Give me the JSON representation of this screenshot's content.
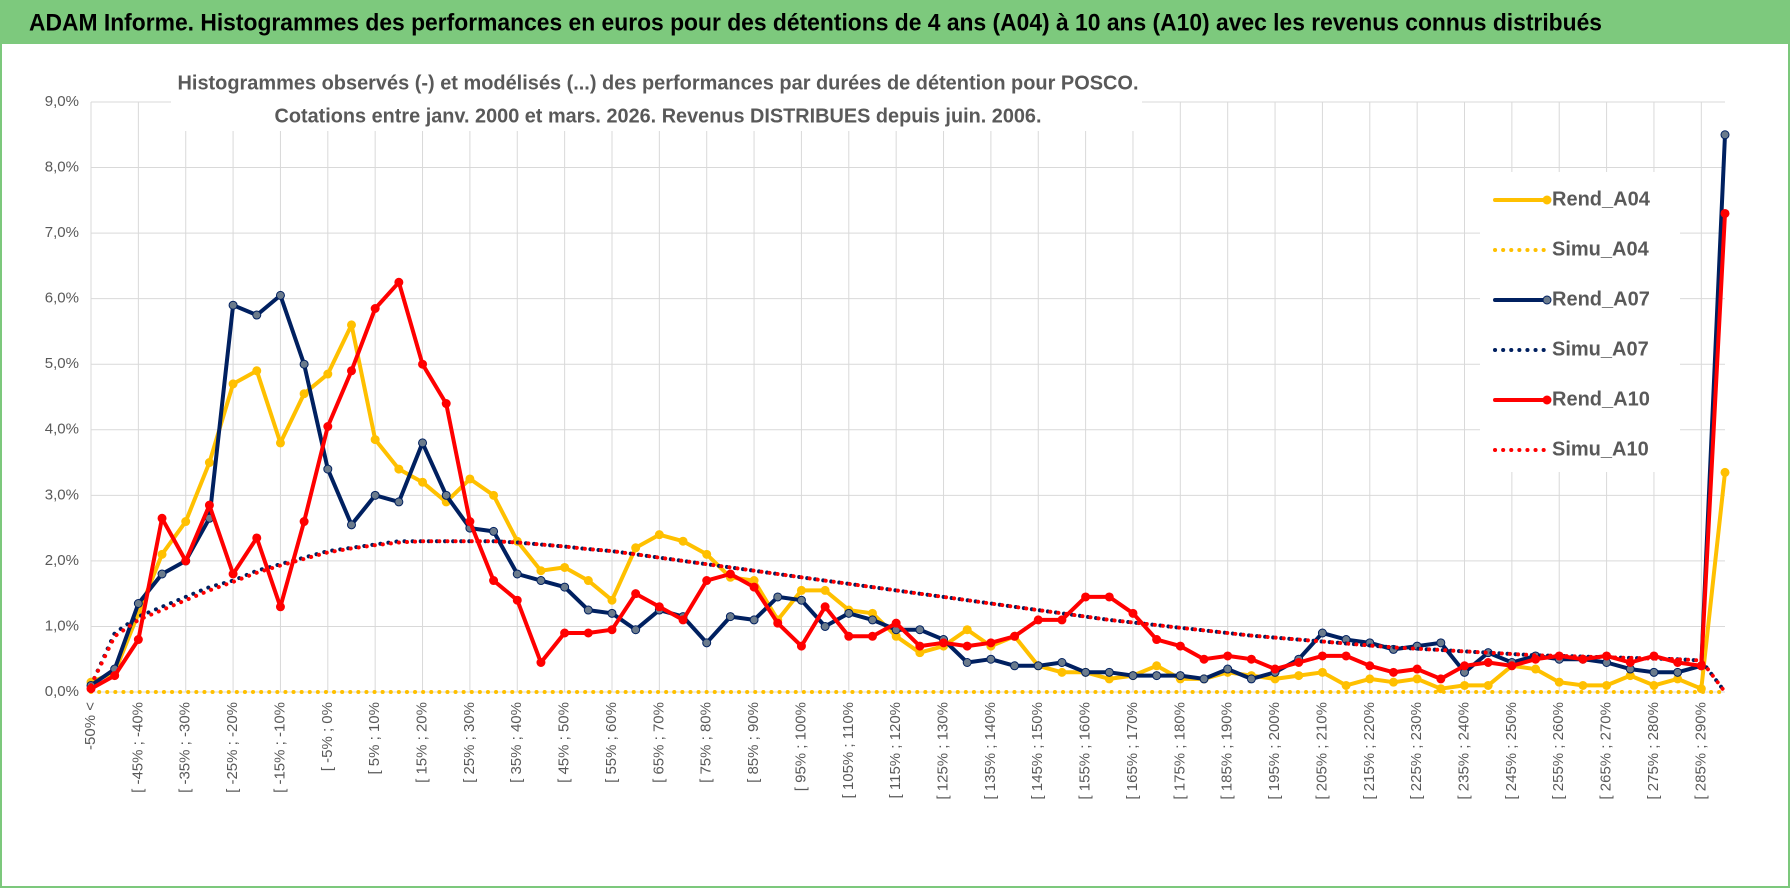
{
  "header": {
    "title": "ADAM Informe. Histogrammes des performances en euros pour des détentions de 4 ans (A04) à 10 ans (A10) avec les revenus connus distribués"
  },
  "chart_data": {
    "type": "line",
    "title": "Histogrammes observés (-) et modélisés (...) des performances par durées de détention pour POSCO.",
    "subtitle": "Cotations entre janv. 2000 et mars. 2026.  Revenus DISTRIBUES depuis juin. 2006.",
    "categories": [
      "-50% <",
      null,
      "[ -45% ; -40%",
      null,
      "[ -35% ; -30%",
      null,
      "[ -25% ; -20%",
      null,
      "[ -15% ; -10%",
      null,
      "[ -5% ; 0%",
      null,
      "[ 5% ; 10%",
      null,
      "[ 15% ; 20%",
      null,
      "[ 25% ; 30%",
      null,
      "[ 35% ; 40%",
      null,
      "[ 45% ; 50%",
      null,
      "[ 55% ; 60%",
      null,
      "[ 65% ; 70%",
      null,
      "[ 75% ; 80%",
      null,
      "[ 85% ; 90%",
      null,
      "[ 95% ; 100%",
      null,
      "[ 105% ; 110%",
      null,
      "[ 115% ; 120%",
      null,
      "[ 125% ; 130%",
      null,
      "[ 135% ; 140%",
      null,
      "[ 145% ; 150%",
      null,
      "[ 155% ; 160%",
      null,
      "[ 165% ; 170%",
      null,
      "[ 175% ; 180%",
      null,
      "[ 185% ; 190%",
      null,
      "[ 195% ; 200%",
      null,
      "[ 205% ; 210%",
      null,
      "[ 215% ; 220%",
      null,
      "[ 225% ; 230%",
      null,
      "[ 235% ; 240%",
      null,
      "[ 245% ; 250%",
      null,
      "[ 255% ; 260%",
      null,
      "[ 265% ; 270%",
      null,
      "[ 275% ; 280%",
      null,
      "[ 285% ; 290%",
      null
    ],
    "series": [
      {
        "name": "Rend_A04",
        "color": "#ffc000",
        "line_style": "solid",
        "values": [
          0.15,
          0.3,
          1.2,
          2.1,
          2.6,
          3.5,
          4.7,
          4.9,
          3.8,
          4.55,
          4.85,
          5.6,
          3.85,
          3.4,
          3.2,
          2.9,
          3.25,
          3.0,
          2.3,
          1.85,
          1.9,
          1.7,
          1.4,
          2.2,
          2.4,
          2.3,
          2.1,
          1.75,
          1.7,
          1.1,
          1.55,
          1.55,
          1.25,
          1.2,
          0.85,
          0.6,
          0.7,
          0.95,
          0.7,
          0.85,
          0.4,
          0.3,
          0.3,
          0.2,
          0.25,
          0.4,
          0.2,
          0.2,
          0.3,
          0.25,
          0.2,
          0.25,
          0.3,
          0.1,
          0.2,
          0.15,
          0.2,
          0.05,
          0.1,
          0.1,
          0.4,
          0.35,
          0.15,
          0.1,
          0.1,
          0.25,
          0.1,
          0.2,
          0.05,
          3.35
        ]
      },
      {
        "name": "Simu_A04",
        "color": "#ffc000",
        "line_style": "dotted",
        "values": [
          0,
          0,
          0,
          0,
          0,
          0,
          0,
          0,
          0,
          0,
          0,
          0,
          0,
          0,
          0,
          0,
          0,
          0,
          0,
          0,
          0,
          0,
          0,
          0,
          0,
          0,
          0,
          0,
          0,
          0,
          0,
          0,
          0,
          0,
          0,
          0,
          0,
          0,
          0,
          0,
          0,
          0,
          0,
          0,
          0,
          0,
          0,
          0,
          0,
          0,
          0,
          0,
          0,
          0,
          0,
          0,
          0,
          0,
          0,
          0,
          0,
          0,
          0,
          0,
          0,
          0,
          0,
          0,
          0,
          0
        ]
      },
      {
        "name": "Rend_A07",
        "color": "#002060",
        "line_style": "solid",
        "values": [
          0.1,
          0.35,
          1.35,
          1.8,
          2.0,
          2.65,
          5.9,
          5.75,
          6.05,
          5.0,
          3.4,
          2.55,
          3.0,
          2.9,
          3.8,
          3.0,
          2.5,
          2.45,
          1.8,
          1.7,
          1.6,
          1.25,
          1.2,
          0.95,
          1.25,
          1.15,
          0.75,
          1.15,
          1.1,
          1.45,
          1.4,
          1.0,
          1.2,
          1.1,
          0.95,
          0.95,
          0.8,
          0.45,
          0.5,
          0.4,
          0.4,
          0.45,
          0.3,
          0.3,
          0.25,
          0.25,
          0.25,
          0.2,
          0.35,
          0.2,
          0.3,
          0.5,
          0.9,
          0.8,
          0.75,
          0.65,
          0.7,
          0.75,
          0.3,
          0.6,
          0.45,
          0.55,
          0.5,
          0.5,
          0.45,
          0.35,
          0.3,
          0.3,
          0.4,
          8.5
        ]
      },
      {
        "name": "Simu_A07",
        "color": "#002060",
        "line_style": "dotted",
        "values": [
          0.1,
          0.9,
          1.15,
          1.3,
          1.45,
          1.6,
          1.7,
          1.85,
          1.95,
          2.05,
          2.15,
          2.2,
          2.25,
          2.3,
          2.3,
          2.3,
          2.3,
          2.3,
          2.28,
          2.25,
          2.22,
          2.18,
          2.15,
          2.1,
          2.05,
          2.0,
          1.95,
          1.9,
          1.85,
          1.8,
          1.75,
          1.7,
          1.65,
          1.6,
          1.55,
          1.5,
          1.45,
          1.4,
          1.35,
          1.3,
          1.25,
          1.2,
          1.15,
          1.1,
          1.06,
          1.02,
          0.98,
          0.94,
          0.9,
          0.86,
          0.83,
          0.8,
          0.77,
          0.74,
          0.71,
          0.68,
          0.66,
          0.64,
          0.62,
          0.6,
          0.58,
          0.56,
          0.55,
          0.54,
          0.53,
          0.52,
          0.51,
          0.5,
          0.48,
          0
        ]
      },
      {
        "name": "Rend_A10",
        "color": "#ff0000",
        "line_style": "solid",
        "values": [
          0.05,
          0.25,
          0.8,
          2.65,
          2.0,
          2.85,
          1.8,
          2.35,
          1.3,
          2.6,
          4.05,
          4.9,
          5.85,
          6.25,
          5.0,
          4.4,
          2.6,
          1.7,
          1.4,
          0.45,
          0.9,
          0.9,
          0.95,
          1.5,
          1.3,
          1.1,
          1.7,
          1.8,
          1.6,
          1.05,
          0.7,
          1.3,
          0.85,
          0.85,
          1.05,
          0.7,
          0.75,
          0.7,
          0.75,
          0.85,
          1.1,
          1.1,
          1.45,
          1.45,
          1.2,
          0.8,
          0.7,
          0.5,
          0.55,
          0.5,
          0.35,
          0.45,
          0.55,
          0.55,
          0.4,
          0.3,
          0.35,
          0.2,
          0.4,
          0.45,
          0.4,
          0.5,
          0.55,
          0.5,
          0.55,
          0.45,
          0.55,
          0.45,
          0.4,
          7.3
        ]
      },
      {
        "name": "Simu_A10",
        "color": "#ff0000",
        "line_style": "dotted",
        "values": [
          0.1,
          0.85,
          1.1,
          1.25,
          1.4,
          1.55,
          1.68,
          1.82,
          1.93,
          2.03,
          2.13,
          2.19,
          2.24,
          2.28,
          2.3,
          2.3,
          2.3,
          2.3,
          2.28,
          2.25,
          2.22,
          2.18,
          2.15,
          2.1,
          2.05,
          2.0,
          1.95,
          1.9,
          1.85,
          1.8,
          1.75,
          1.7,
          1.65,
          1.6,
          1.55,
          1.5,
          1.45,
          1.4,
          1.35,
          1.3,
          1.25,
          1.2,
          1.15,
          1.1,
          1.06,
          1.02,
          0.98,
          0.94,
          0.9,
          0.86,
          0.83,
          0.8,
          0.77,
          0.74,
          0.71,
          0.68,
          0.66,
          0.64,
          0.62,
          0.6,
          0.58,
          0.56,
          0.55,
          0.54,
          0.53,
          0.52,
          0.51,
          0.5,
          0.48,
          0
        ]
      }
    ],
    "ylim": [
      0,
      9
    ],
    "yticks": [
      {
        "value": 0,
        "label": "0,0%"
      },
      {
        "value": 1,
        "label": "1,0%"
      },
      {
        "value": 2,
        "label": "2,0%"
      },
      {
        "value": 3,
        "label": "3,0%"
      },
      {
        "value": 4,
        "label": "4,0%"
      },
      {
        "value": 5,
        "label": "5,0%"
      },
      {
        "value": 6,
        "label": "6,0%"
      },
      {
        "value": 7,
        "label": "7,0%"
      },
      {
        "value": 8,
        "label": "8,0%"
      },
      {
        "value": 9,
        "label": "9,0%"
      }
    ],
    "grid": true,
    "legend": "right"
  }
}
